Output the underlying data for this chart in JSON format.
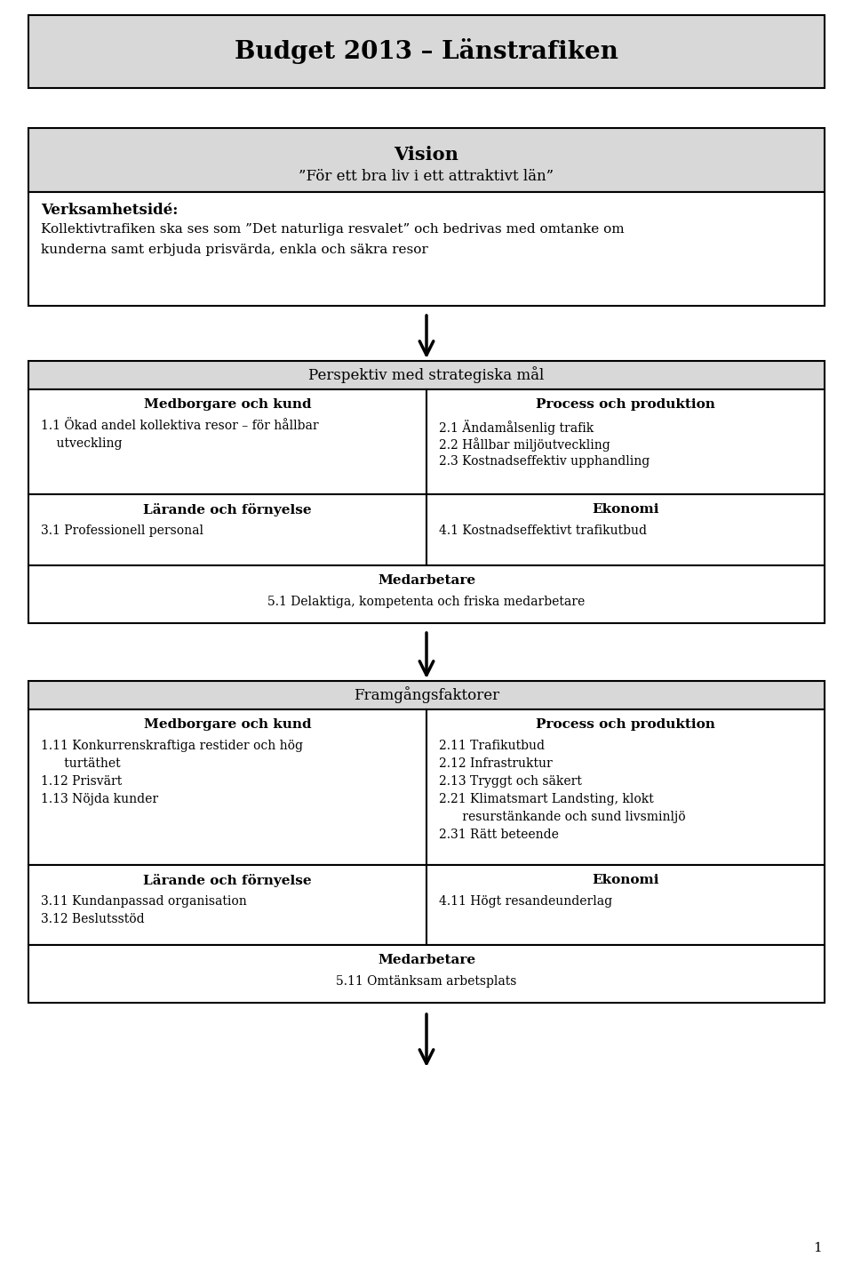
{
  "title": "Budget 2013 – Länstrafiken",
  "bg_color": "#d8d8d8",
  "white": "#ffffff",
  "border_color": "#000000",
  "page_bg": "#ffffff",
  "header_section": {
    "vision_title": "Vision",
    "vision_subtitle": "”För ett bra liv i ett attraktivt län”",
    "verksamhet_title": "Verksamhetsidé:",
    "verksamhet_line1": "Kollektivtrafiken ska ses som ”Det naturliga resvalet” och bedrivas med omtanke om",
    "verksamhet_line2": "kunderna samt erbjuda prisvärda, enkla och säkra resor"
  },
  "strategiska_mal": {
    "header": "Perspektiv med strategiska mål",
    "col1_title": "Medborgare och kund",
    "col1_line1": "1.1 Ökad andel kollektiva resor – för hållbar",
    "col1_line2": "    utveckling",
    "col2_title": "Process och produktion",
    "col2_items": [
      "2.1 Ändamålsenlig trafik",
      "2.2 Hållbar miljöutveckling",
      "2.3 Kostnadseffektiv upphandling"
    ],
    "col3_title": "Lärande och förnyelse",
    "col3_items": [
      "3.1 Professionell personal"
    ],
    "col4_title": "Ekonomi",
    "col4_items": [
      "4.1 Kostnadseffektivt trafikutbud"
    ],
    "col5_title": "Medarbetare",
    "col5_items": [
      "5.1 Delaktiga, kompetenta och friska medarbetare"
    ]
  },
  "framgangsfaktorer": {
    "header": "Framgångsfaktorer",
    "col1_title": "Medborgare och kund",
    "col1_items": [
      "1.11 Konkurrenskraftiga restider och hög",
      "      turtäthet",
      "1.12 Prisvärt",
      "1.13 Nöjda kunder"
    ],
    "col2_title": "Process och produktion",
    "col2_items": [
      "2.11 Trafikutbud",
      "2.12 Infrastruktur",
      "2.13 Tryggt och säkert",
      "2.21 Klimatsmart Landsting, klokt",
      "      resurstänkande och sund livsminljö",
      "2.31 Rätt beteende"
    ],
    "col3_title": "Lärande och förnyelse",
    "col3_items": [
      "3.11 Kundanpassad organisation",
      "3.12 Beslutsstöd"
    ],
    "col4_title": "Ekonomi",
    "col4_items": [
      "4.11 Högt resandeunderlag"
    ],
    "col5_title": "Medarbetare",
    "col5_items": [
      "5.11 Omtänksam arbetsplats"
    ]
  },
  "page_number": "1"
}
